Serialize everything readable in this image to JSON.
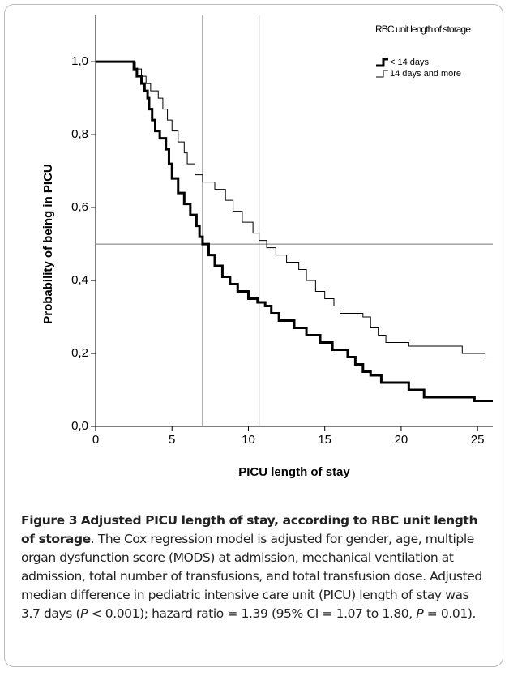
{
  "chart_data": {
    "type": "step",
    "xlabel": "PICU length of stay",
    "ylabel": "Probability of being in PICU",
    "xlim": [
      0,
      26
    ],
    "ylim": [
      0,
      1.127
    ],
    "xticks": [
      0,
      5,
      10,
      15,
      20,
      25
    ],
    "yticks": [
      {
        "value": 0,
        "label": "0,0"
      },
      {
        "value": 0.2,
        "label": "0,2"
      },
      {
        "value": 0.4,
        "label": "0,4"
      },
      {
        "value": 0.6,
        "label": "0,6"
      },
      {
        "value": 0.8,
        "label": "0,8"
      },
      {
        "value": 1,
        "label": "1,0"
      }
    ],
    "reference_x": [
      7,
      10.7
    ],
    "reference_y": [
      0.5
    ],
    "legend_title": "RBC unit length of storage",
    "legend_position": "upper right",
    "series": [
      {
        "name": "< 14 days",
        "color": "#000000",
        "line_width": 3,
        "x": [
          0,
          2.5,
          2.7,
          3.0,
          3.2,
          3.4,
          3.5,
          3.7,
          3.9,
          4.2,
          4.6,
          4.8,
          5.0,
          5.4,
          5.8,
          6.2,
          6.6,
          6.8,
          7.0,
          7.4,
          7.8,
          8.3,
          8.8,
          9.3,
          10.0,
          10.6,
          11.1,
          11.5,
          12.0,
          13.0,
          13.8,
          14.7,
          15.5,
          16.5,
          17.0,
          17.5,
          18.0,
          18.7,
          20.5,
          21.5,
          24.8
        ],
        "values": [
          1.0,
          0.98,
          0.96,
          0.94,
          0.92,
          0.9,
          0.87,
          0.84,
          0.81,
          0.79,
          0.76,
          0.72,
          0.68,
          0.64,
          0.61,
          0.58,
          0.55,
          0.52,
          0.5,
          0.47,
          0.44,
          0.41,
          0.39,
          0.37,
          0.35,
          0.34,
          0.33,
          0.31,
          0.29,
          0.27,
          0.25,
          0.23,
          0.21,
          0.19,
          0.17,
          0.15,
          0.14,
          0.12,
          0.1,
          0.08,
          0.07
        ]
      },
      {
        "name": "14 days and more",
        "color": "#000000",
        "line_width": 1,
        "x": [
          0,
          2.6,
          3.0,
          3.3,
          3.6,
          4.1,
          4.4,
          4.7,
          5.0,
          5.4,
          5.8,
          6.0,
          6.5,
          7.0,
          7.8,
          8.5,
          9.0,
          9.6,
          10.3,
          10.7,
          11.2,
          11.8,
          12.5,
          13.3,
          13.8,
          14.4,
          15.0,
          15.6,
          16.0,
          17.5,
          18.0,
          18.5,
          19.0,
          20.5,
          24.0,
          25.5
        ],
        "values": [
          1.0,
          0.98,
          0.96,
          0.94,
          0.92,
          0.9,
          0.87,
          0.84,
          0.81,
          0.78,
          0.75,
          0.72,
          0.69,
          0.67,
          0.65,
          0.62,
          0.59,
          0.56,
          0.53,
          0.51,
          0.49,
          0.47,
          0.45,
          0.43,
          0.4,
          0.37,
          0.35,
          0.33,
          0.31,
          0.3,
          0.27,
          0.25,
          0.23,
          0.22,
          0.2,
          0.19
        ]
      }
    ]
  },
  "caption": {
    "label": "Figure 3",
    "title": "Adjusted PICU length of stay, according to RBC unit length of storage",
    "segments": [
      ". The Cox regression model is adjusted for gender, age, multiple organ dysfunction score (MODS) at admission, mechanical ventilation at admission, total number of transfusions, and total transfusion dose. Adjusted median difference in pediatric intensive care unit (PICU) length of stay was 3.7 days (",
      "P",
      " < 0.001); hazard ratio = 1.39 (95% CI = 1.07 to 1.80, ",
      "P",
      " = 0.01)."
    ]
  }
}
